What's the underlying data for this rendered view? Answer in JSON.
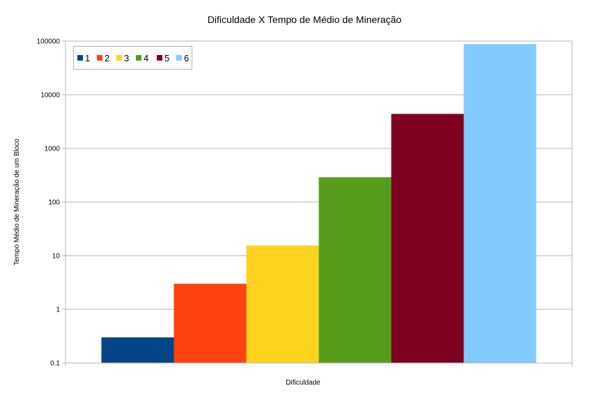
{
  "chart_data": {
    "type": "bar",
    "title": "Dificuldade X Tempo de Médio de Mineração",
    "xlabel": "Dificuldade",
    "ylabel": "Tempo Médio de Mineração de um Bloco",
    "y_scale": "log",
    "ylim": [
      0.1,
      100000
    ],
    "y_ticks": [
      "0.1",
      "1",
      "10",
      "100",
      "1000",
      "10000",
      "100000"
    ],
    "grid": true,
    "legend_position": "top-left",
    "series": [
      {
        "name": "1",
        "value": 0.3,
        "color": "#004586"
      },
      {
        "name": "2",
        "value": 3,
        "color": "#ff420e"
      },
      {
        "name": "3",
        "value": 15.5,
        "color": "#ffd320"
      },
      {
        "name": "4",
        "value": 290,
        "color": "#579d1c"
      },
      {
        "name": "5",
        "value": 4400,
        "color": "#7e0021"
      },
      {
        "name": "6",
        "value": 88000,
        "color": "#83caff"
      }
    ]
  }
}
